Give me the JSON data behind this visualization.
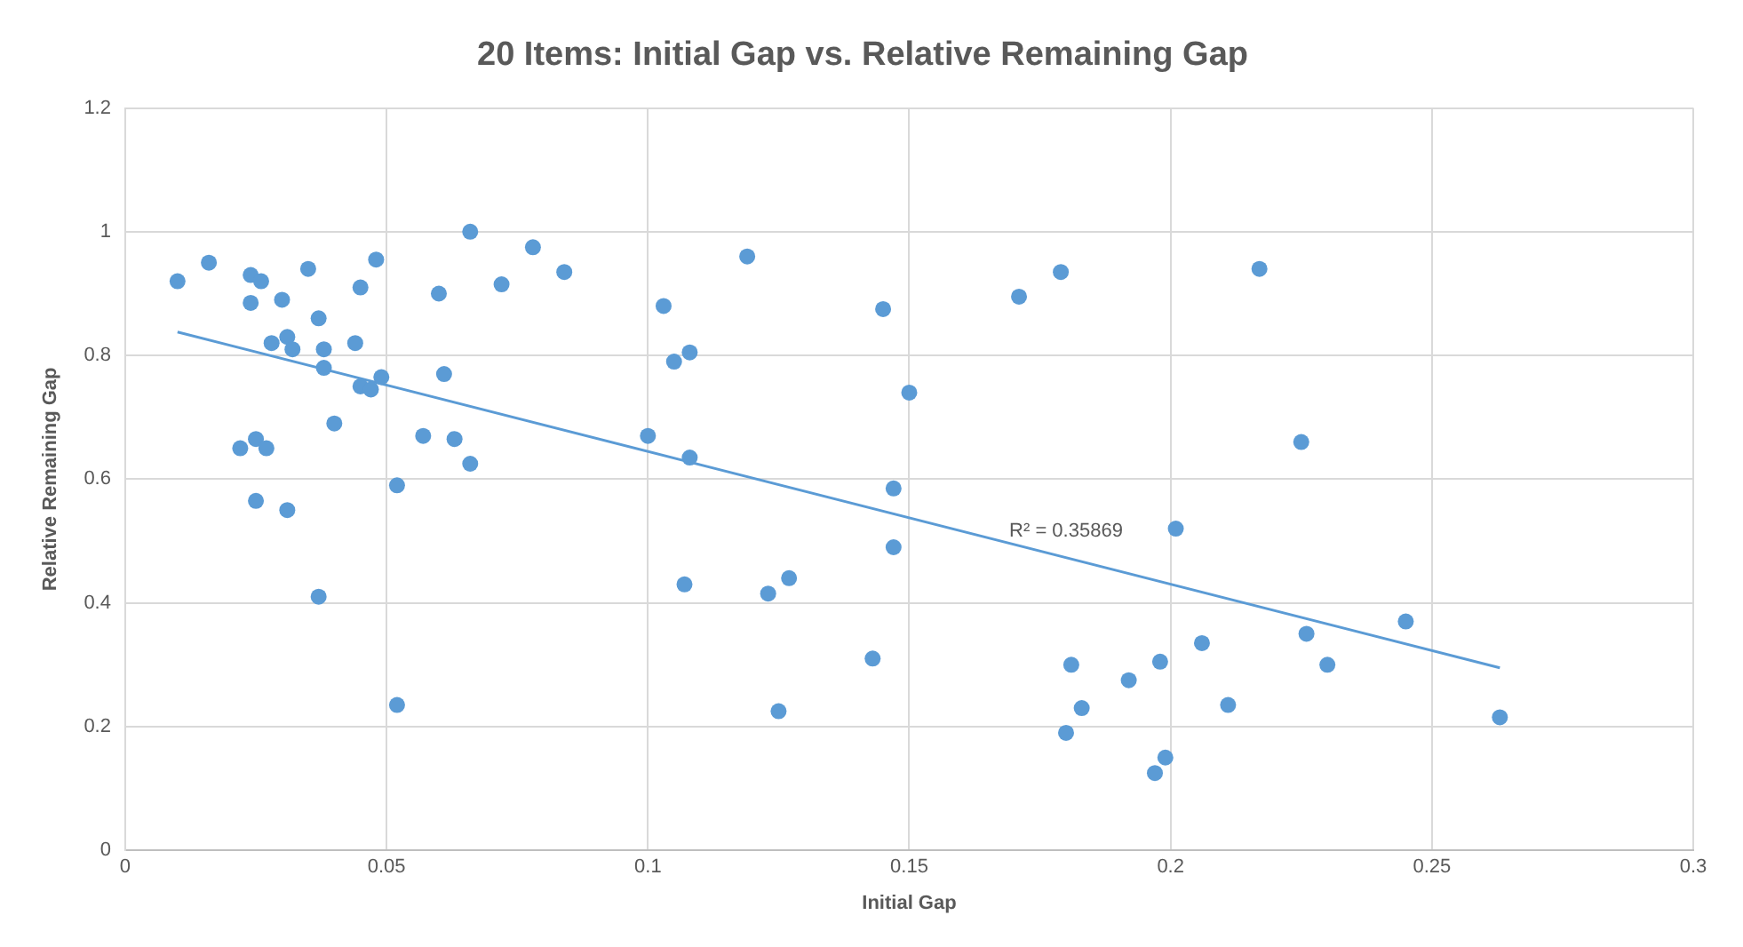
{
  "chart_data": {
    "type": "scatter",
    "title": "20 Items: Initial Gap vs. Relative Remaining Gap",
    "xlabel": "Initial Gap",
    "ylabel": "Relative Remaining Gap",
    "xlim": [
      0,
      0.3
    ],
    "xticks": [
      0,
      0.05,
      0.1,
      0.15,
      0.2,
      0.25,
      0.3
    ],
    "ylim": [
      0,
      1.2
    ],
    "yticks": [
      0,
      0.2,
      0.4,
      0.6,
      0.8,
      1,
      1.2
    ],
    "grid": true,
    "legend": false,
    "marker": "circle",
    "annotations": [
      "R² = 0.35869"
    ],
    "series": [
      {
        "color": "#5b9bd5",
        "x": [
          0.01,
          0.016,
          0.024,
          0.026,
          0.024,
          0.03,
          0.035,
          0.037,
          0.045,
          0.048,
          0.028,
          0.031,
          0.032,
          0.038,
          0.038,
          0.044,
          0.045,
          0.047,
          0.049,
          0.04,
          0.022,
          0.025,
          0.027,
          0.025,
          0.031,
          0.037,
          0.052,
          0.052,
          0.057,
          0.06,
          0.061,
          0.063,
          0.066,
          0.066,
          0.072,
          0.078,
          0.084,
          0.1,
          0.103,
          0.105,
          0.107,
          0.108,
          0.108,
          0.119,
          0.123,
          0.125,
          0.127,
          0.143,
          0.145,
          0.147,
          0.147,
          0.15,
          0.171,
          0.179,
          0.18,
          0.181,
          0.183,
          0.192,
          0.197,
          0.198,
          0.199,
          0.201,
          0.206,
          0.211,
          0.217,
          0.225,
          0.226,
          0.23,
          0.245,
          0.263
        ],
        "values": [
          0.92,
          0.95,
          0.93,
          0.92,
          0.885,
          0.89,
          0.94,
          0.86,
          0.91,
          0.955,
          0.82,
          0.83,
          0.81,
          0.81,
          0.78,
          0.82,
          0.75,
          0.745,
          0.765,
          0.69,
          0.65,
          0.665,
          0.65,
          0.565,
          0.55,
          0.41,
          0.59,
          0.235,
          0.67,
          0.9,
          0.77,
          0.665,
          0.625,
          1.0,
          0.915,
          0.975,
          0.935,
          0.67,
          0.88,
          0.79,
          0.43,
          0.805,
          0.635,
          0.96,
          0.415,
          0.225,
          0.44,
          0.31,
          0.875,
          0.49,
          0.585,
          0.74,
          0.895,
          0.935,
          0.19,
          0.3,
          0.23,
          0.275,
          0.125,
          0.305,
          0.15,
          0.52,
          0.335,
          0.235,
          0.94,
          0.66,
          0.35,
          0.3,
          0.37,
          0.215
        ]
      },
      {
        "type": "line",
        "marker": "none",
        "line_style": "solid",
        "color": "#5b9bd5",
        "x": [
          0.01,
          0.263
        ],
        "values": [
          0.838,
          0.295
        ]
      }
    ]
  }
}
